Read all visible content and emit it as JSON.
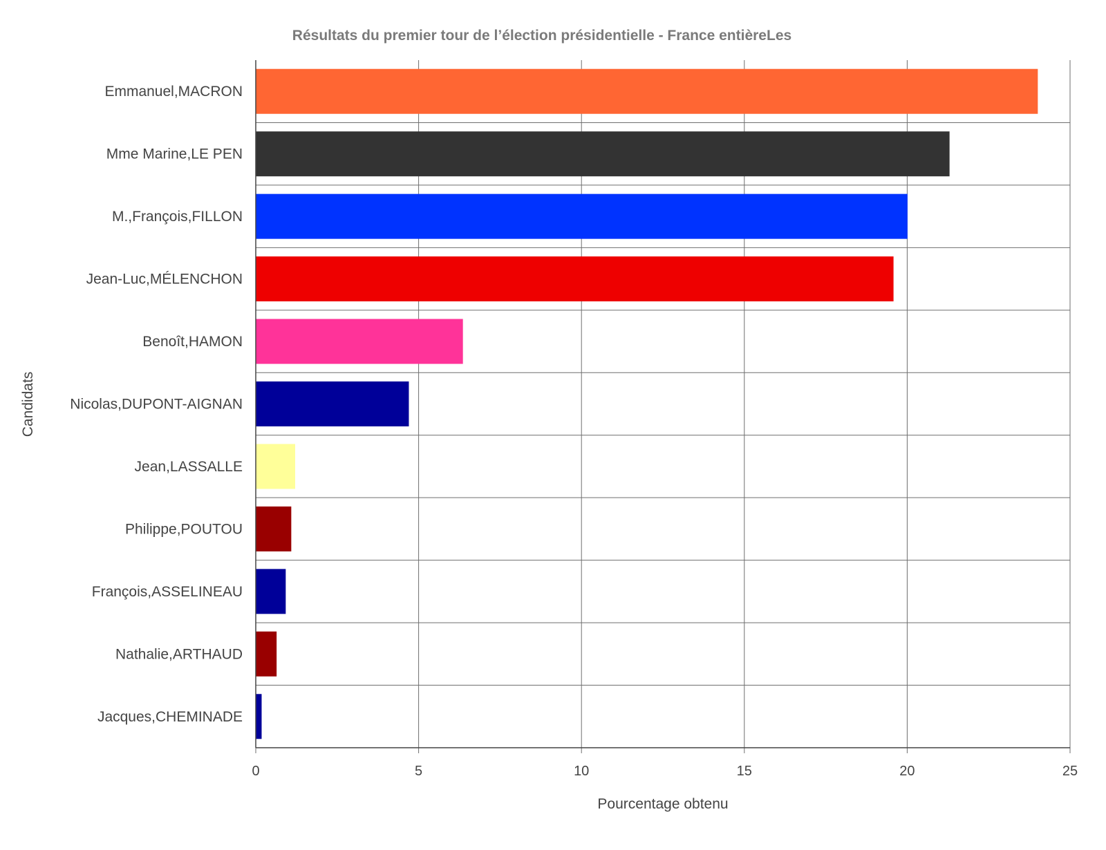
{
  "chart_data": {
    "type": "bar",
    "orientation": "horizontal",
    "title": "Résultats du premier tour de l’élection présidentielle - France entièreLes",
    "xlabel": "Pourcentage obtenu",
    "ylabel": "Candidats",
    "xlim": [
      0,
      25
    ],
    "x_ticks": [
      "0",
      "5",
      "10",
      "15",
      "20",
      "25"
    ],
    "grid": true,
    "legend": "none",
    "categories": [
      "Emmanuel,MACRON",
      "Mme Marine,LE PEN",
      "M.,François,FILLON",
      "Jean-Luc,MÉLENCHON",
      "Benoît,HAMON",
      "Nicolas,DUPONT-AIGNAN",
      "Jean,LASSALLE",
      "Philippe,POUTOU",
      "François,ASSELINEAU",
      "Nathalie,ARTHAUD",
      "Jacques,CHEMINADE"
    ],
    "values": [
      24.01,
      21.3,
      20.01,
      19.58,
      6.36,
      4.7,
      1.21,
      1.09,
      0.92,
      0.64,
      0.18
    ],
    "colors": [
      "#FF6633",
      "#333333",
      "#0033FF",
      "#EE0000",
      "#FF3399",
      "#000099",
      "#FFFF99",
      "#990000",
      "#000099",
      "#990000",
      "#000099"
    ]
  }
}
